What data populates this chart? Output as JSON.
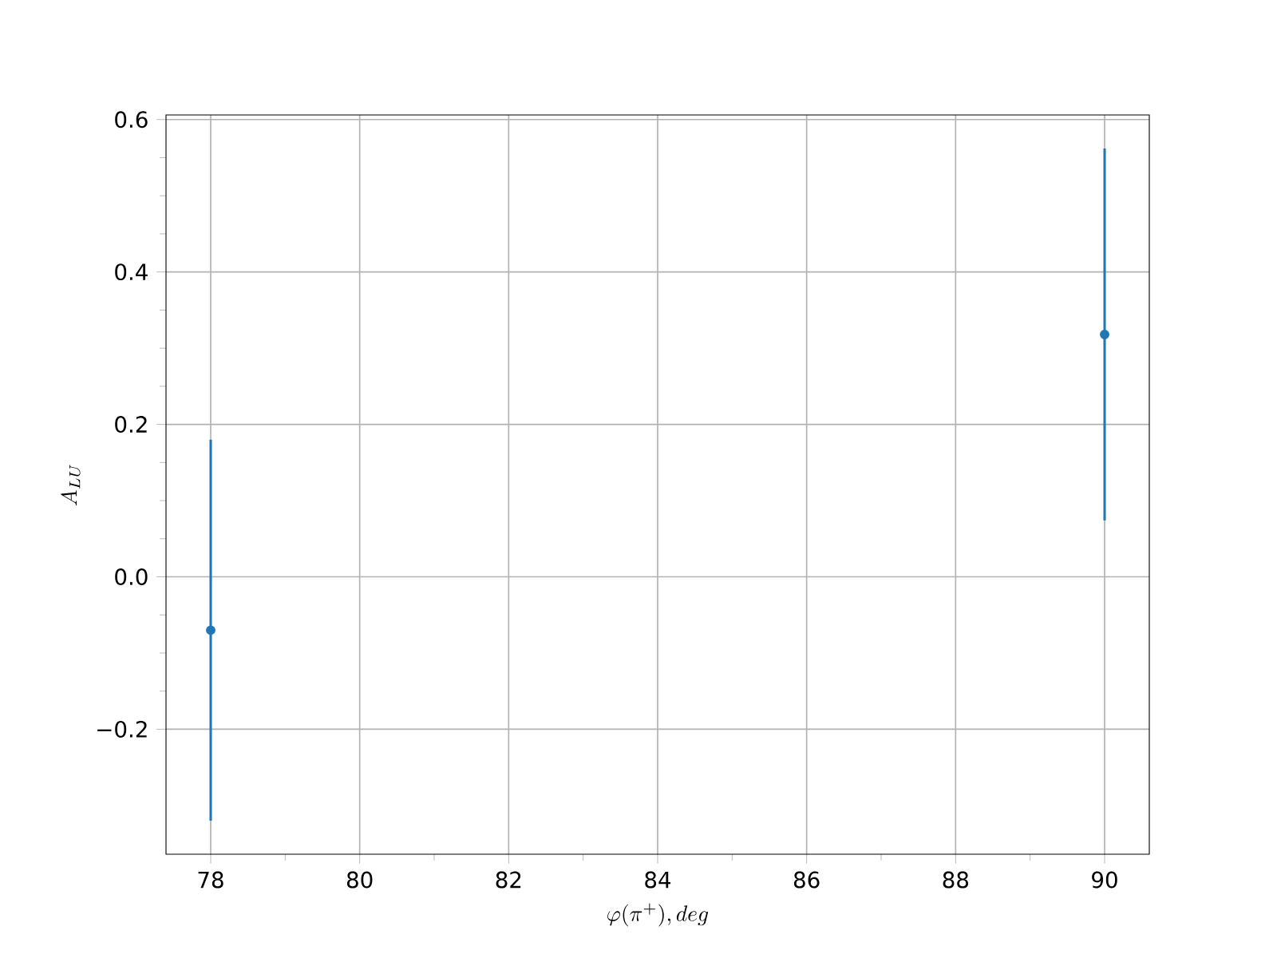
{
  "chart_data": {
    "type": "scatter",
    "xlabel": "\\varphi(\\pi^+), deg",
    "ylabel": "A_{LU}",
    "x": [
      78,
      90
    ],
    "values": [
      -0.07,
      0.318
    ],
    "errors": [
      0.25,
      0.244
    ],
    "color": "#1f77b4",
    "xlim": [
      77.4,
      90.6
    ],
    "ylim": [
      -0.364,
      0.606
    ],
    "xticks": [
      78,
      80,
      82,
      84,
      86,
      88,
      90
    ],
    "yticks": [
      {
        "value": -0.2,
        "label": "−0.2"
      },
      {
        "value": 0.0,
        "label": "0.0"
      },
      {
        "value": 0.2,
        "label": "0.2"
      },
      {
        "value": 0.4,
        "label": "0.4"
      },
      {
        "value": 0.6,
        "label": "0.6"
      }
    ],
    "grid": true,
    "marker": "circle"
  }
}
